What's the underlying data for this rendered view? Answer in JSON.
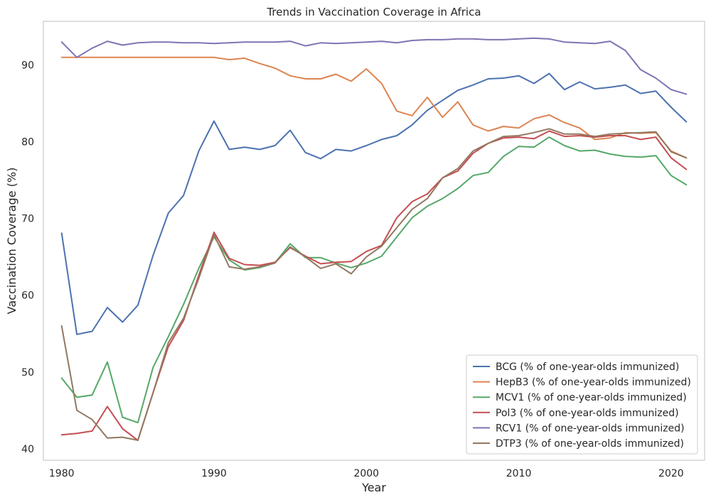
{
  "chart_data": {
    "type": "line",
    "title": "Trends in Vaccination Coverage in Africa",
    "xlabel": "Year",
    "ylabel": "Vaccination Coverage (%)",
    "xlim": [
      1978.8,
      2022.2
    ],
    "ylim": [
      38.5,
      95.7
    ],
    "xticks": [
      1980,
      1990,
      2000,
      2010,
      2020
    ],
    "yticks": [
      40,
      50,
      60,
      70,
      80,
      90
    ],
    "grid": false,
    "legend_position": "lower-right",
    "x": [
      1980,
      1981,
      1982,
      1983,
      1984,
      1985,
      1986,
      1987,
      1988,
      1989,
      1990,
      1991,
      1992,
      1993,
      1994,
      1995,
      1996,
      1997,
      1998,
      1999,
      2000,
      2001,
      2002,
      2003,
      2004,
      2005,
      2006,
      2007,
      2008,
      2009,
      2010,
      2011,
      2012,
      2013,
      2014,
      2015,
      2016,
      2017,
      2018,
      2019,
      2020,
      2021
    ],
    "series": [
      {
        "name": "BCG (% of one-year-olds immunized)",
        "color": "#4c72b0",
        "values": [
          68.1,
          54.9,
          55.3,
          58.4,
          56.5,
          58.7,
          65.2,
          70.7,
          73.0,
          78.8,
          82.7,
          79.0,
          79.3,
          79.0,
          79.5,
          81.5,
          78.6,
          77.8,
          79.0,
          78.8,
          79.5,
          80.3,
          80.8,
          82.2,
          84.1,
          85.4,
          86.7,
          87.4,
          88.2,
          88.3,
          88.6,
          87.6,
          88.9,
          86.8,
          87.8,
          86.9,
          87.1,
          87.4,
          86.3,
          86.6,
          84.5,
          82.6
        ]
      },
      {
        "name": "HepB3 (% of one-year-olds immunized)",
        "color": "#dd8452",
        "values": [
          91.0,
          91.0,
          91.0,
          91.0,
          91.0,
          91.0,
          91.0,
          91.0,
          91.0,
          91.0,
          91.0,
          90.7,
          90.9,
          90.2,
          89.6,
          88.6,
          88.2,
          88.2,
          88.8,
          87.9,
          89.5,
          87.6,
          84.0,
          83.4,
          85.8,
          83.2,
          85.2,
          82.2,
          81.4,
          82.0,
          81.8,
          83.0,
          83.5,
          82.5,
          81.8,
          80.3,
          80.5,
          81.2,
          81.1,
          81.2,
          78.8,
          77.9
        ]
      },
      {
        "name": "MCV1 (% of one-year-olds immunized)",
        "color": "#55a868",
        "values": [
          49.2,
          46.7,
          47.0,
          51.3,
          44.1,
          43.4,
          50.6,
          54.6,
          58.8,
          63.5,
          67.6,
          64.6,
          63.3,
          63.6,
          64.2,
          66.7,
          64.9,
          64.9,
          64.2,
          63.6,
          64.2,
          65.1,
          67.6,
          70.1,
          71.6,
          72.6,
          73.9,
          75.6,
          76.0,
          78.1,
          79.4,
          79.3,
          80.6,
          79.5,
          78.8,
          78.9,
          78.4,
          78.1,
          78.0,
          78.2,
          75.6,
          74.4
        ]
      },
      {
        "name": "Pol3 (% of one-year-olds immunized)",
        "color": "#c44e52",
        "values": [
          41.8,
          42.0,
          42.3,
          45.5,
          42.6,
          41.1,
          47.3,
          53.3,
          56.7,
          62.6,
          68.2,
          64.8,
          64.0,
          63.9,
          64.3,
          66.2,
          65.1,
          64.1,
          64.3,
          64.4,
          65.7,
          66.5,
          70.1,
          72.2,
          73.2,
          75.3,
          76.2,
          78.5,
          79.8,
          80.5,
          80.6,
          80.4,
          81.4,
          80.7,
          80.8,
          80.6,
          80.8,
          80.8,
          80.3,
          80.6,
          77.9,
          76.4
        ]
      },
      {
        "name": "RCV1 (% of one-year-olds immunized)",
        "color": "#8172b3",
        "values": [
          93.0,
          91.0,
          92.2,
          93.1,
          92.6,
          92.9,
          93.0,
          93.0,
          92.9,
          92.9,
          92.8,
          92.9,
          93.0,
          93.0,
          93.0,
          93.1,
          92.5,
          92.9,
          92.8,
          92.9,
          93.0,
          93.1,
          92.9,
          93.2,
          93.3,
          93.3,
          93.4,
          93.4,
          93.3,
          93.3,
          93.4,
          93.5,
          93.4,
          93.0,
          92.9,
          92.8,
          93.1,
          91.9,
          89.4,
          88.3,
          86.8,
          86.2
        ]
      },
      {
        "name": "DTP3 (% of one-year-olds immunized)",
        "color": "#937860",
        "values": [
          56.0,
          45.0,
          43.8,
          41.4,
          41.5,
          41.1,
          47.3,
          53.8,
          57.0,
          62.2,
          67.9,
          63.7,
          63.4,
          63.7,
          64.2,
          66.3,
          65.0,
          63.5,
          64.1,
          62.8,
          65.0,
          66.4,
          68.8,
          71.2,
          72.6,
          75.3,
          76.5,
          78.8,
          79.8,
          80.7,
          80.8,
          81.2,
          81.7,
          81.0,
          81.0,
          80.7,
          81.0,
          81.1,
          81.2,
          81.3,
          78.7,
          77.9
        ]
      }
    ]
  }
}
